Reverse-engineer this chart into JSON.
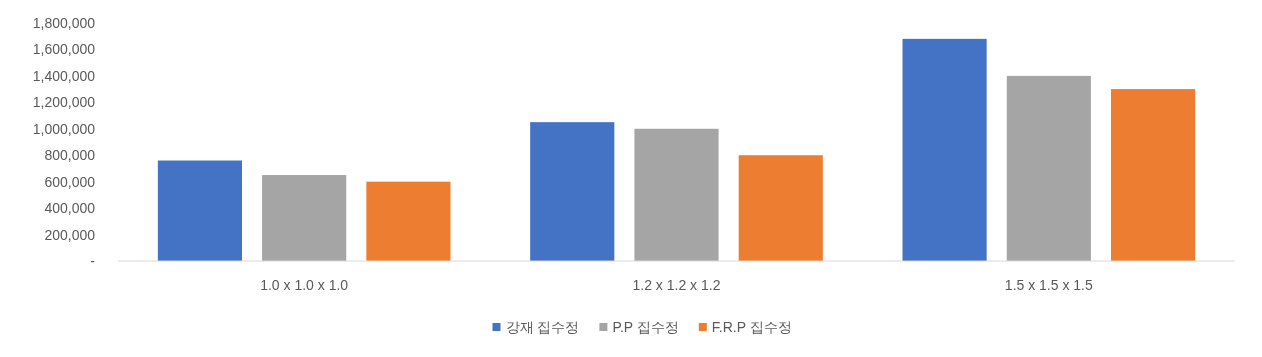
{
  "chart_data": {
    "type": "bar",
    "categories": [
      "1.0 x 1.0 x 1.0",
      "1.2 x 1.2 x 1.2",
      "1.5 x 1.5 x 1.5"
    ],
    "series": [
      {
        "name": "강재 집수정",
        "color": "#4472c4",
        "values": [
          760000,
          1050000,
          1680000
        ]
      },
      {
        "name": "P.P 집수정",
        "color": "#a5a5a5",
        "values": [
          650000,
          1000000,
          1400000
        ]
      },
      {
        "name": "F.R.P 집수정",
        "color": "#ed7d31",
        "values": [
          600000,
          800000,
          1300000
        ]
      }
    ],
    "ylim": [
      0,
      1800000
    ],
    "yticks": [
      {
        "value": 0,
        "label": "-"
      },
      {
        "value": 200000,
        "label": "200,000"
      },
      {
        "value": 400000,
        "label": "400,000"
      },
      {
        "value": 600000,
        "label": "600,000"
      },
      {
        "value": 800000,
        "label": "800,000"
      },
      {
        "value": 1000000,
        "label": "1,000,000"
      },
      {
        "value": 1200000,
        "label": "1,200,000"
      },
      {
        "value": 1400000,
        "label": "1,400,000"
      },
      {
        "value": 1600000,
        "label": "1,600,000"
      },
      {
        "value": 1800000,
        "label": "1,800,000"
      }
    ],
    "legend": "bottom"
  }
}
